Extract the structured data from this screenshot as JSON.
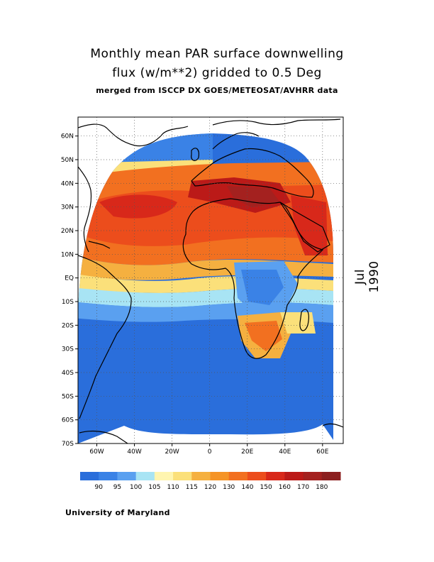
{
  "title_line1": "Monthly mean PAR surface downwelling",
  "title_line2": "flux (w/m**2) gridded to 0.5 Deg",
  "title_line3": "merged from ISCCP DX GOES/METEOSAT/AVHRR data",
  "date_label": "Jul 1990",
  "credit": "University of Maryland",
  "map": {
    "lat_labels": [
      "60N",
      "50N",
      "40N",
      "30N",
      "20N",
      "10N",
      "EQ",
      "10S",
      "20S",
      "30S",
      "40S",
      "50S",
      "60S",
      "70S"
    ],
    "lon_labels": [
      "60W",
      "40W",
      "20W",
      "0",
      "20E",
      "40E",
      "60E"
    ],
    "lon_range": [
      -70,
      70
    ],
    "lat_range": [
      -70,
      70
    ],
    "grid": "dotted"
  },
  "colorbar": {
    "labels": [
      "90",
      "95",
      "100",
      "105",
      "110",
      "115",
      "120",
      "130",
      "140",
      "150",
      "160",
      "170",
      "180"
    ],
    "colors": [
      "#2a6edb",
      "#3a82e6",
      "#5aa0f0",
      "#a8e4f4",
      "#fff5b0",
      "#fbe07a",
      "#f5b040",
      "#f59426",
      "#f27020",
      "#ec4d1c",
      "#d8281a",
      "#bb1a18",
      "#a4211f",
      "#8c1f1f"
    ]
  },
  "field_colors": {
    "ocean_south": "#2a6edb",
    "tropics": "#5aa0f0",
    "sahara": "#f27020",
    "mediterranean": "#c41e1e",
    "north_atlantic": "#3a82e6"
  }
}
